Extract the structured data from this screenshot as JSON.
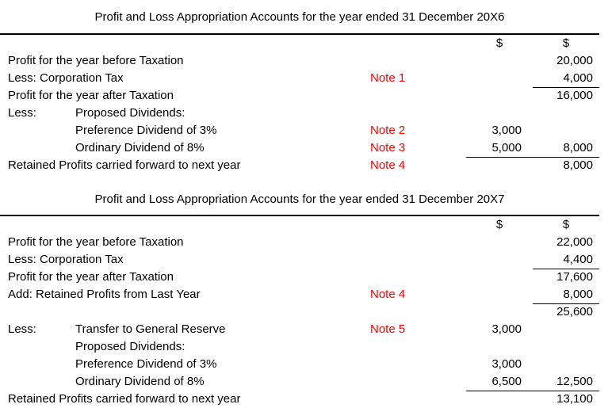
{
  "colors": {
    "text": "#000000",
    "note_red": "#FF0000",
    "rule": "#000000",
    "background": "#FFFFFF"
  },
  "tables": [
    {
      "title": "Profit and Loss Appropriation Accounts for the year ended 31 December 20X6",
      "col1_header": "$",
      "col2_header": "$",
      "rows": [
        {
          "label": "Profit for the year before Taxation",
          "indent": "",
          "note": "",
          "col1": "",
          "col2": "20,000",
          "rule": "none"
        },
        {
          "label": "Less: Corporation Tax",
          "indent": "",
          "note": "Note 1",
          "col1": "",
          "col2": "4,000",
          "rule": "col2"
        },
        {
          "label": "Profit for the year after Taxation",
          "indent": "",
          "note": "",
          "col1": "",
          "col2": "16,000",
          "rule": "none"
        },
        {
          "label": "Less:",
          "indent": "Proposed Dividends:",
          "note": "",
          "col1": "",
          "col2": "",
          "rule": "none"
        },
        {
          "label": "",
          "indent": "Preference Dividend of 3%",
          "note": "Note 2",
          "col1": "3,000",
          "col2": "",
          "rule": "none"
        },
        {
          "label": "",
          "indent": "Ordinary Dividend of 8%",
          "note": "Note 3",
          "col1": "5,000",
          "col2": "8,000",
          "rule": "both"
        },
        {
          "label": "Retained Profits carried forward to next year",
          "indent": "",
          "note": "Note 4",
          "col1": "",
          "col2": "8,000",
          "rule": "none"
        }
      ]
    },
    {
      "title": "Profit and Loss Appropriation Accounts for the year ended 31 December 20X7",
      "col1_header": "$",
      "col2_header": "$",
      "rows": [
        {
          "label": "Profit for the year before Taxation",
          "indent": "",
          "note": "",
          "col1": "",
          "col2": "22,000",
          "rule": "none"
        },
        {
          "label": "Less: Corporation Tax",
          "indent": "",
          "note": "",
          "col1": "",
          "col2": "4,400",
          "rule": "col2"
        },
        {
          "label": "Profit for the year after Taxation",
          "indent": "",
          "note": "",
          "col1": "",
          "col2": "17,600",
          "rule": "none"
        },
        {
          "label": "Add: Retained Profits from Last Year",
          "indent": "",
          "note": "Note 4",
          "col1": "",
          "col2": "8,000",
          "rule": "col2"
        },
        {
          "label": "",
          "indent": "",
          "note": "",
          "col1": "",
          "col2": "25,600",
          "rule": "none"
        },
        {
          "label": "Less:",
          "indent": "Transfer to General Reserve",
          "note": "Note 5",
          "col1": "3,000",
          "col2": "",
          "rule": "none"
        },
        {
          "label": "",
          "indent": "Proposed Dividends:",
          "note": "",
          "col1": "",
          "col2": "",
          "rule": "none"
        },
        {
          "label": "",
          "indent": "Preference Dividend of 3%",
          "note": "",
          "col1": "3,000",
          "col2": "",
          "rule": "none"
        },
        {
          "label": "",
          "indent": "Ordinary Dividend of 8%",
          "note": "",
          "col1": "6,500",
          "col2": "12,500",
          "rule": "both"
        },
        {
          "label": "Retained Profits carried forward to next year",
          "indent": "",
          "note": "",
          "col1": "",
          "col2": "13,100",
          "rule": "none"
        }
      ]
    }
  ]
}
